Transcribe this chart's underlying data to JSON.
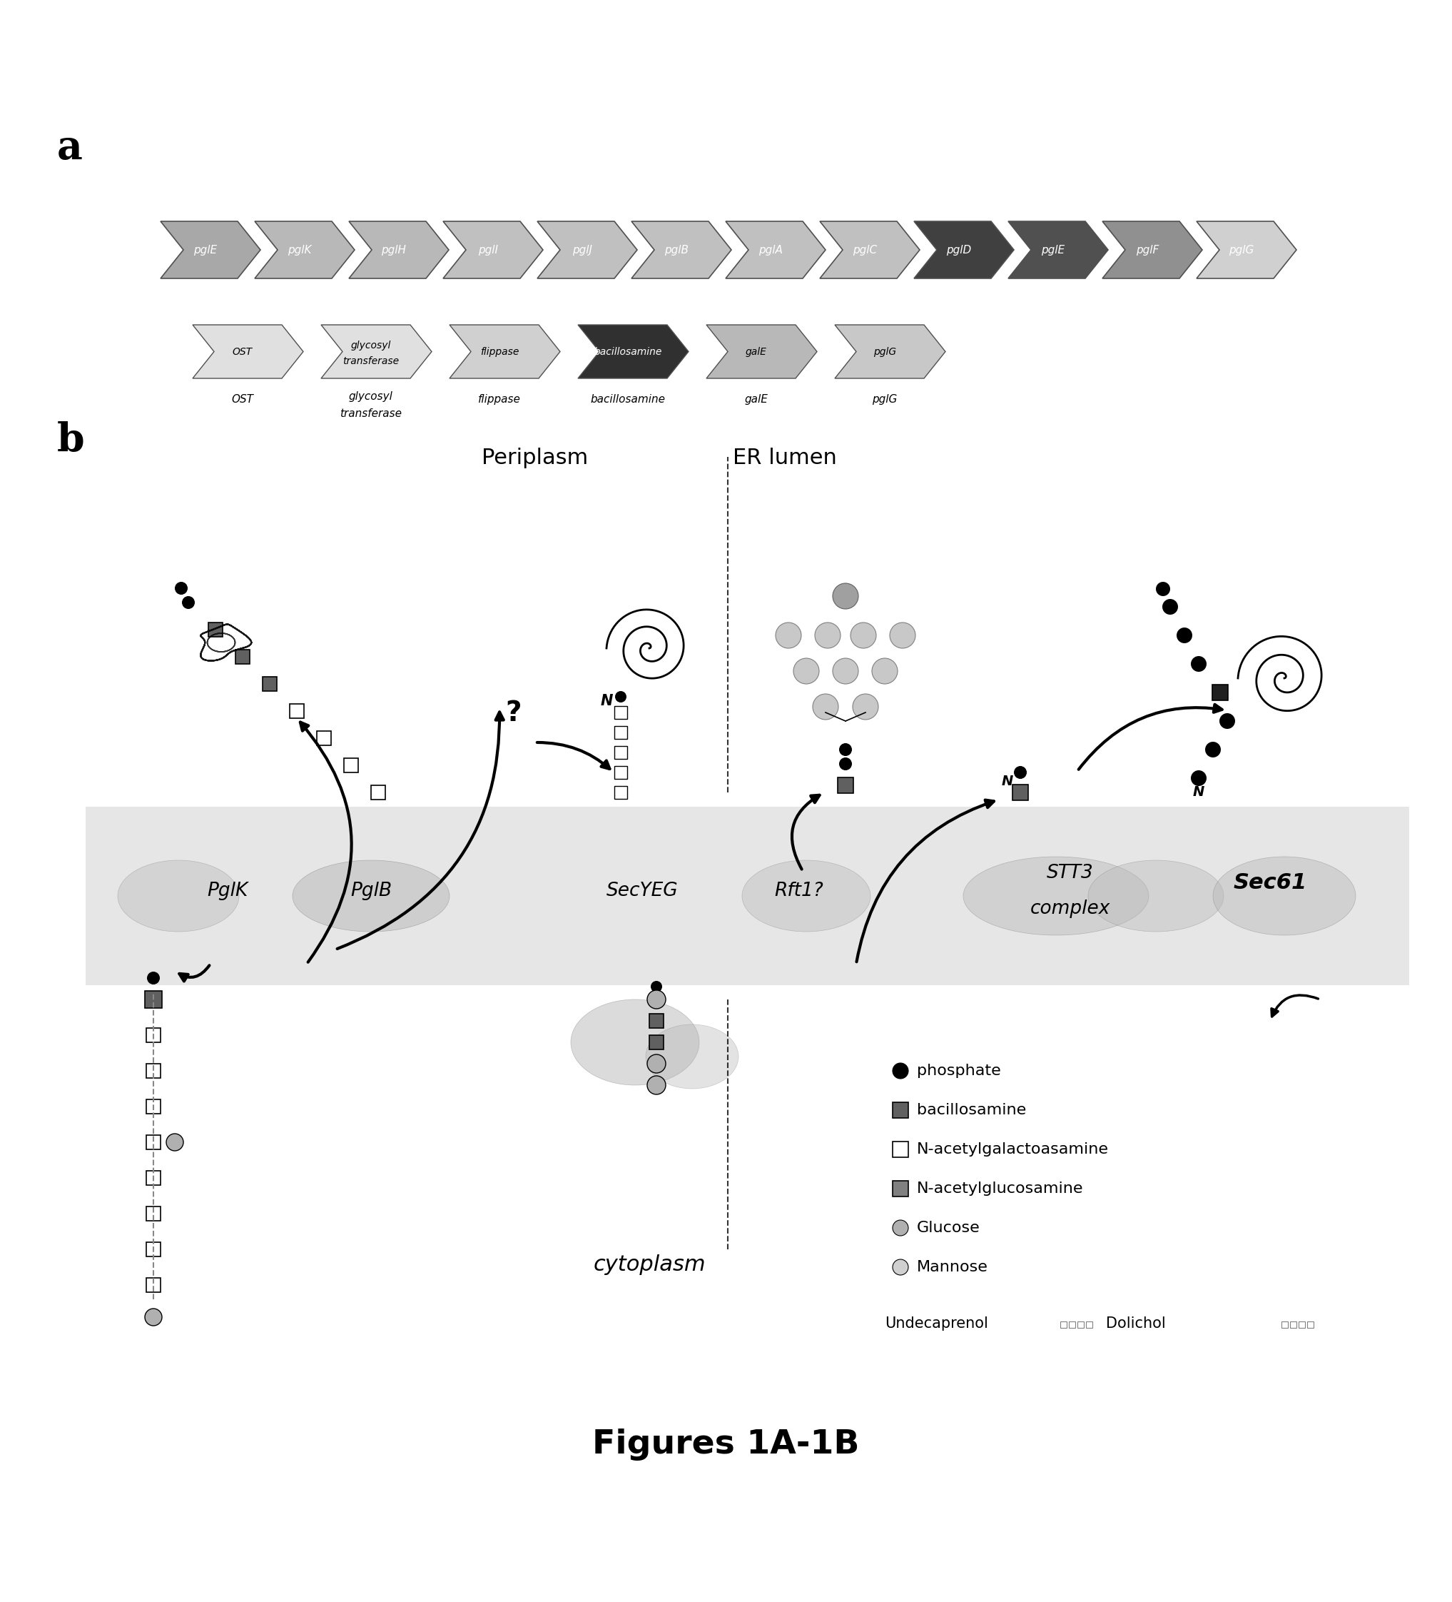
{
  "title": "Figures 1A-1B",
  "panel_a_label": "a",
  "panel_b_label": "b",
  "gene_labels_r1": [
    "pglE",
    "pglK",
    "pglH",
    "pglI",
    "pglJ",
    "pglB",
    "pglA",
    "pglC",
    "pglD",
    "pglE",
    "pglF",
    "pglG"
  ],
  "gene_colors_r1": [
    "#a8a8a8",
    "#b8b8b8",
    "#b8b8b8",
    "#c0c0c0",
    "#c0c0c0",
    "#c0c0c0",
    "#c0c0c0",
    "#c0c0c0",
    "#404040",
    "#505050",
    "#909090",
    "#d0d0d0"
  ],
  "gene_labels_r2": [
    "OST",
    "glycosyl\ntransferase",
    "flippase",
    "bacillosamine",
    "galE",
    "pglG"
  ],
  "gene_colors_r2": [
    "#e0e0e0",
    "#e0e0e0",
    "#d0d0d0",
    "#303030",
    "#b8b8b8",
    "#c8c8c8"
  ],
  "gene_text_colors_r2": [
    "black",
    "black",
    "black",
    "white",
    "black",
    "black"
  ],
  "periplasm_label": "Periplasm",
  "er_lumen_label": "ER lumen",
  "cytoplasm_label": "cytoplasm",
  "legend_items": [
    "phosphate",
    "bacillosamine",
    "N-acetylgalactoasamine",
    "N-acetylglucosamine",
    "Glucose",
    "Mannose"
  ],
  "undecaprenol_label": "Undecaprenol",
  "dolichol_label": "Dolichol",
  "background_color": "#ffffff"
}
